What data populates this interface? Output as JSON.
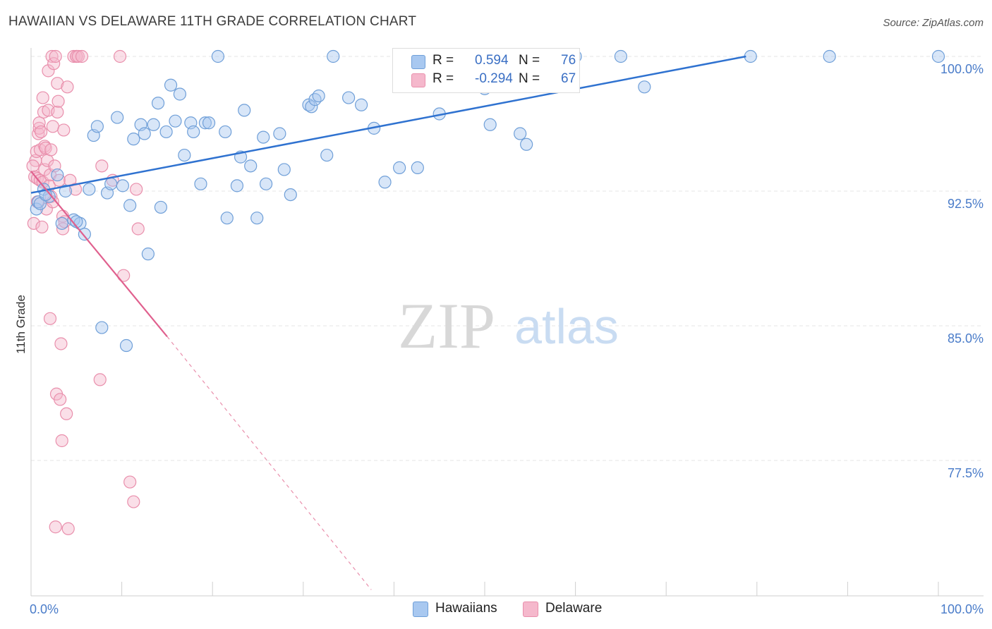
{
  "header": {
    "title": "HAWAIIAN VS DELAWARE 11TH GRADE CORRELATION CHART",
    "source": "Source: ZipAtlas.com"
  },
  "watermark": {
    "zip": "ZIP",
    "atlas": "atlas"
  },
  "colors": {
    "blue_fill": "#a8c8f0",
    "blue_stroke": "#6f9fd8",
    "blue_line": "#2f72d0",
    "pink_fill": "#f5b8cc",
    "pink_stroke": "#e98fac",
    "pink_line": "#e0608e",
    "axis_text": "#4a7cc9"
  },
  "legend": {
    "rows": [
      {
        "r_label": "R =",
        "r_value": "0.594",
        "n_label": "N =",
        "n_value": "76"
      },
      {
        "r_label": "R =",
        "r_value": "-0.294",
        "n_label": "N =",
        "n_value": "67"
      }
    ]
  },
  "bottom_legend": {
    "series_a": "Hawaiians",
    "series_b": "Delaware"
  },
  "chart_data": {
    "type": "scatter",
    "title": "HAWAIIAN VS DELAWARE 11TH GRADE CORRELATION CHART",
    "xlabel": "",
    "ylabel": "11th Grade",
    "xlim": [
      0,
      100
    ],
    "ylim": [
      70.0,
      100.7
    ],
    "x_tick_labels": [
      "0.0%",
      "100.0%"
    ],
    "y_ticks": [
      {
        "value": 100.0,
        "label": "100.0%"
      },
      {
        "value": 92.5,
        "label": "92.5%"
      },
      {
        "value": 85.0,
        "label": "85.0%"
      },
      {
        "value": 77.5,
        "label": "77.5%"
      }
    ],
    "series": [
      {
        "name": "Hawaiians",
        "r": 0.594,
        "n": 76,
        "trend": {
          "x0": 0,
          "y0": 92.4,
          "x1": 78.8,
          "y1": 100.0
        },
        "points": [
          [
            0.6,
            91.5
          ],
          [
            0.8,
            91.9
          ],
          [
            1.0,
            91.8
          ],
          [
            1.4,
            92.6
          ],
          [
            2.0,
            92.2
          ],
          [
            2.9,
            93.4
          ],
          [
            3.4,
            90.7
          ],
          [
            3.8,
            92.5
          ],
          [
            4.7,
            90.9
          ],
          [
            5.4,
            90.7
          ],
          [
            5.9,
            90.1
          ],
          [
            6.4,
            92.6
          ],
          [
            6.9,
            95.6
          ],
          [
            7.3,
            96.1
          ],
          [
            7.8,
            84.9
          ],
          [
            8.4,
            92.4
          ],
          [
            8.8,
            92.9
          ],
          [
            9.5,
            96.6
          ],
          [
            10.1,
            92.8
          ],
          [
            10.5,
            83.9
          ],
          [
            10.9,
            91.7
          ],
          [
            11.3,
            95.4
          ],
          [
            12.1,
            96.2
          ],
          [
            12.5,
            95.7
          ],
          [
            12.9,
            89.0
          ],
          [
            13.5,
            96.2
          ],
          [
            14.0,
            97.4
          ],
          [
            14.3,
            91.6
          ],
          [
            14.9,
            95.8
          ],
          [
            15.4,
            98.4
          ],
          [
            15.9,
            96.4
          ],
          [
            16.4,
            97.9
          ],
          [
            16.9,
            94.5
          ],
          [
            17.6,
            96.3
          ],
          [
            17.9,
            95.8
          ],
          [
            18.7,
            92.9
          ],
          [
            19.2,
            96.3
          ],
          [
            19.6,
            96.3
          ],
          [
            20.6,
            100.0
          ],
          [
            21.4,
            95.8
          ],
          [
            21.6,
            91.0
          ],
          [
            22.7,
            92.8
          ],
          [
            23.1,
            94.4
          ],
          [
            23.5,
            97.0
          ],
          [
            24.2,
            93.9
          ],
          [
            24.9,
            91.0
          ],
          [
            25.6,
            95.5
          ],
          [
            25.9,
            92.9
          ],
          [
            27.4,
            95.7
          ],
          [
            27.9,
            93.7
          ],
          [
            28.6,
            92.3
          ],
          [
            30.6,
            97.3
          ],
          [
            30.9,
            97.2
          ],
          [
            31.3,
            97.6
          ],
          [
            31.7,
            97.8
          ],
          [
            32.6,
            94.5
          ],
          [
            33.3,
            100.0
          ],
          [
            35.0,
            97.7
          ],
          [
            36.4,
            97.3
          ],
          [
            37.8,
            96.0
          ],
          [
            39.0,
            93.0
          ],
          [
            40.6,
            93.8
          ],
          [
            42.6,
            93.8
          ],
          [
            45.0,
            96.8
          ],
          [
            50.0,
            98.2
          ],
          [
            50.6,
            96.2
          ],
          [
            53.9,
            95.7
          ],
          [
            54.6,
            95.1
          ],
          [
            60.0,
            100.0
          ],
          [
            65.0,
            100.0
          ],
          [
            67.6,
            98.3
          ],
          [
            79.3,
            100.0
          ],
          [
            88.0,
            100.0
          ],
          [
            100.0,
            100.0
          ],
          [
            1.6,
            92.3
          ],
          [
            5.0,
            90.8
          ]
        ]
      },
      {
        "name": "Delaware",
        "r": -0.294,
        "n": 67,
        "trend": {
          "x0": 0,
          "y0": 93.6,
          "x1": 15.0,
          "y1": 84.4
        },
        "trend_dashed": {
          "x0": 15.0,
          "y0": 84.4,
          "x1": 37.5,
          "y1": 70.3
        },
        "points": [
          [
            0.3,
            90.7
          ],
          [
            0.4,
            93.3
          ],
          [
            0.5,
            94.2
          ],
          [
            0.6,
            94.7
          ],
          [
            0.7,
            93.2
          ],
          [
            0.8,
            95.7
          ],
          [
            0.9,
            96.0
          ],
          [
            0.9,
            96.3
          ],
          [
            1.0,
            94.8
          ],
          [
            1.0,
            93.1
          ],
          [
            1.1,
            95.8
          ],
          [
            1.2,
            90.5
          ],
          [
            1.3,
            93.0
          ],
          [
            1.3,
            97.7
          ],
          [
            1.4,
            96.9
          ],
          [
            1.5,
            95.0
          ],
          [
            1.5,
            93.7
          ],
          [
            1.6,
            94.9
          ],
          [
            1.7,
            91.5
          ],
          [
            1.8,
            94.2
          ],
          [
            1.9,
            99.2
          ],
          [
            1.9,
            97.0
          ],
          [
            2.0,
            92.8
          ],
          [
            2.1,
            85.4
          ],
          [
            2.1,
            93.4
          ],
          [
            2.2,
            94.8
          ],
          [
            2.2,
            92.2
          ],
          [
            2.3,
            100.0
          ],
          [
            2.4,
            96.1
          ],
          [
            2.5,
            99.6
          ],
          [
            2.6,
            93.9
          ],
          [
            2.7,
            100.0
          ],
          [
            2.7,
            73.8
          ],
          [
            2.8,
            81.2
          ],
          [
            2.9,
            98.5
          ],
          [
            2.9,
            96.9
          ],
          [
            3.0,
            97.5
          ],
          [
            3.1,
            93.1
          ],
          [
            3.2,
            80.9
          ],
          [
            3.3,
            84.0
          ],
          [
            3.4,
            78.6
          ],
          [
            3.5,
            91.1
          ],
          [
            3.5,
            90.4
          ],
          [
            3.6,
            95.9
          ],
          [
            3.7,
            90.8
          ],
          [
            3.9,
            80.1
          ],
          [
            4.0,
            98.3
          ],
          [
            4.1,
            73.7
          ],
          [
            4.3,
            93.1
          ],
          [
            4.7,
            100.0
          ],
          [
            4.9,
            92.6
          ],
          [
            5.0,
            100.0
          ],
          [
            5.0,
            100.0
          ],
          [
            5.2,
            100.0
          ],
          [
            5.6,
            100.0
          ],
          [
            7.6,
            82.0
          ],
          [
            7.8,
            93.9
          ],
          [
            9.0,
            93.1
          ],
          [
            9.8,
            100.0
          ],
          [
            10.2,
            87.8
          ],
          [
            10.9,
            76.3
          ],
          [
            11.3,
            75.2
          ],
          [
            11.6,
            92.6
          ],
          [
            11.8,
            90.4
          ],
          [
            0.2,
            93.9
          ],
          [
            0.7,
            91.9
          ],
          [
            2.4,
            91.9
          ]
        ]
      }
    ]
  }
}
